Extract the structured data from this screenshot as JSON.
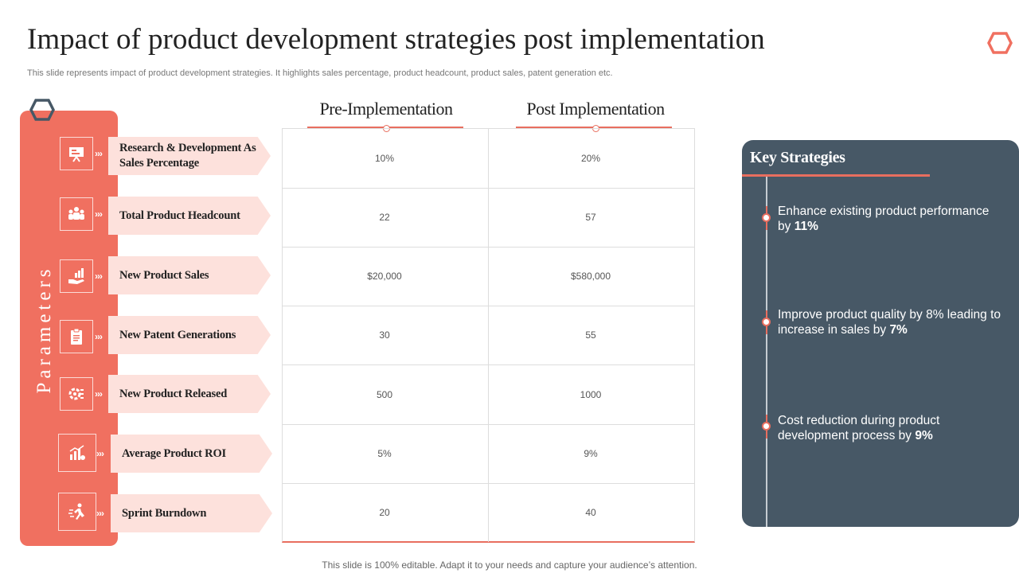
{
  "title": "Impact of product development strategies post implementation",
  "subtitle": "This slide represents impact of product development strategies. It highlights sales percentage, product headcount, product sales, patent generation etc.",
  "sidebar_label": "Parameters",
  "chevron": "›››",
  "columns": {
    "pre": "Pre-Implementation",
    "post": "Post Implementation"
  },
  "rows": [
    {
      "label": "Research & Development As Sales Percentage",
      "icon": "presentation-icon",
      "pre": "10%",
      "post": "20%"
    },
    {
      "label": "Total Product Headcount",
      "icon": "team-icon",
      "pre": "22",
      "post": "57"
    },
    {
      "label": "New Product Sales",
      "icon": "hand-growth-icon",
      "pre": "$20,000",
      "post": "$580,000"
    },
    {
      "label": "New Patent Generations",
      "icon": "clipboard-icon",
      "pre": "30",
      "post": "55"
    },
    {
      "label": "New Product Released",
      "icon": "gear-release-icon",
      "pre": "500",
      "post": "1000"
    },
    {
      "label": "Average Product ROI",
      "icon": "bar-chart-icon",
      "pre": "5%",
      "post": "9%"
    },
    {
      "label": "Sprint Burndown",
      "icon": "runner-icon",
      "pre": "20",
      "post": "40"
    }
  ],
  "key_strategies": {
    "title": "Key Strategies",
    "items": [
      {
        "text": "Enhance existing product performance by ",
        "highlight": "11%"
      },
      {
        "text": "Improve product quality by 8% leading to increase in sales by ",
        "highlight": "7%"
      },
      {
        "text": "Cost reduction during product development process by ",
        "highlight": "9%"
      }
    ]
  },
  "colors": {
    "accent": "#f07060",
    "line": "#e86e5f",
    "pill": "#fde1dc",
    "panel": "#475866",
    "hex_dark": "#475866"
  },
  "footer": "This slide is 100% editable. Adapt it to your needs and capture your audience’s attention."
}
